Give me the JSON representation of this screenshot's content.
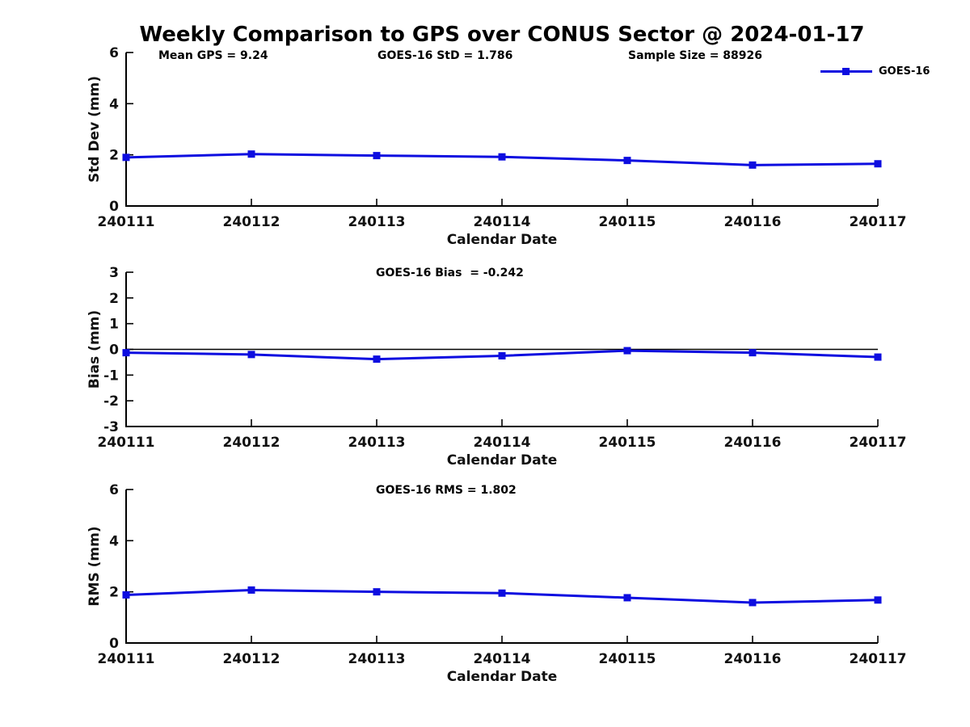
{
  "title": "Weekly Comparison to GPS over CONUS Sector @ 2024-01-17",
  "colors": {
    "line": "#0d0de0",
    "axis": "#000000",
    "text": "#111111"
  },
  "legend": {
    "label": "GOES-16"
  },
  "annotations": {
    "mean_gps": "Mean GPS = 9.24",
    "std": "GOES-16 StD = 1.786",
    "sample_size": "Sample Size = 88926",
    "bias": "GOES-16 Bias  = -0.242",
    "rms": "GOES-16 RMS = 1.802"
  },
  "chart_data": [
    {
      "type": "line",
      "title": "",
      "categories": [
        "240111",
        "240112",
        "240113",
        "240114",
        "240115",
        "240116",
        "240117"
      ],
      "series": [
        {
          "name": "GOES-16",
          "values": [
            1.9,
            2.03,
            1.97,
            1.92,
            1.78,
            1.6,
            1.65
          ]
        }
      ],
      "xlabel": "Calendar Date",
      "ylabel": "Std Dev (mm)",
      "ylim": [
        0,
        6
      ],
      "yticks": [
        0,
        2,
        4,
        6
      ],
      "zero_line": false,
      "grid": false,
      "legend_position": "upper-right-outside"
    },
    {
      "type": "line",
      "title": "",
      "categories": [
        "240111",
        "240112",
        "240113",
        "240114",
        "240115",
        "240116",
        "240117"
      ],
      "series": [
        {
          "name": "GOES-16",
          "values": [
            -0.13,
            -0.2,
            -0.38,
            -0.25,
            -0.05,
            -0.13,
            -0.3
          ]
        }
      ],
      "xlabel": "Calendar Date",
      "ylabel": "Bias (mm)",
      "ylim": [
        -3,
        3
      ],
      "yticks": [
        -3,
        -2,
        -1,
        0,
        1,
        2,
        3
      ],
      "zero_line": true,
      "grid": false
    },
    {
      "type": "line",
      "title": "",
      "categories": [
        "240111",
        "240112",
        "240113",
        "240114",
        "240115",
        "240116",
        "240117"
      ],
      "series": [
        {
          "name": "GOES-16",
          "values": [
            1.88,
            2.07,
            2.0,
            1.95,
            1.77,
            1.58,
            1.68
          ]
        }
      ],
      "xlabel": "Calendar Date",
      "ylabel": "RMS (mm)",
      "ylim": [
        0,
        6
      ],
      "yticks": [
        0,
        2,
        4,
        6
      ],
      "zero_line": false,
      "grid": false
    }
  ]
}
